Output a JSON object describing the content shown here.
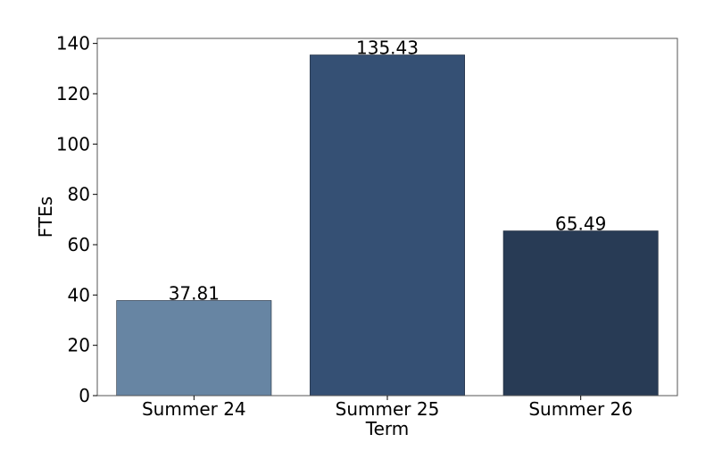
{
  "chart_data": {
    "type": "bar",
    "categories": [
      "Summer 24",
      "Summer 25",
      "Summer 26"
    ],
    "values": [
      37.81,
      135.43,
      65.49
    ],
    "data_labels": [
      "37.81",
      "135.43",
      "65.49"
    ],
    "colors": [
      "#6785a3",
      "#355074",
      "#283b55"
    ],
    "title": "",
    "xlabel": "Term",
    "ylabel": "FTEs",
    "ylim": [
      0,
      142
    ],
    "yticks": [
      0,
      20,
      40,
      60,
      80,
      100,
      120,
      140
    ],
    "grid": false,
    "legend": "none"
  }
}
